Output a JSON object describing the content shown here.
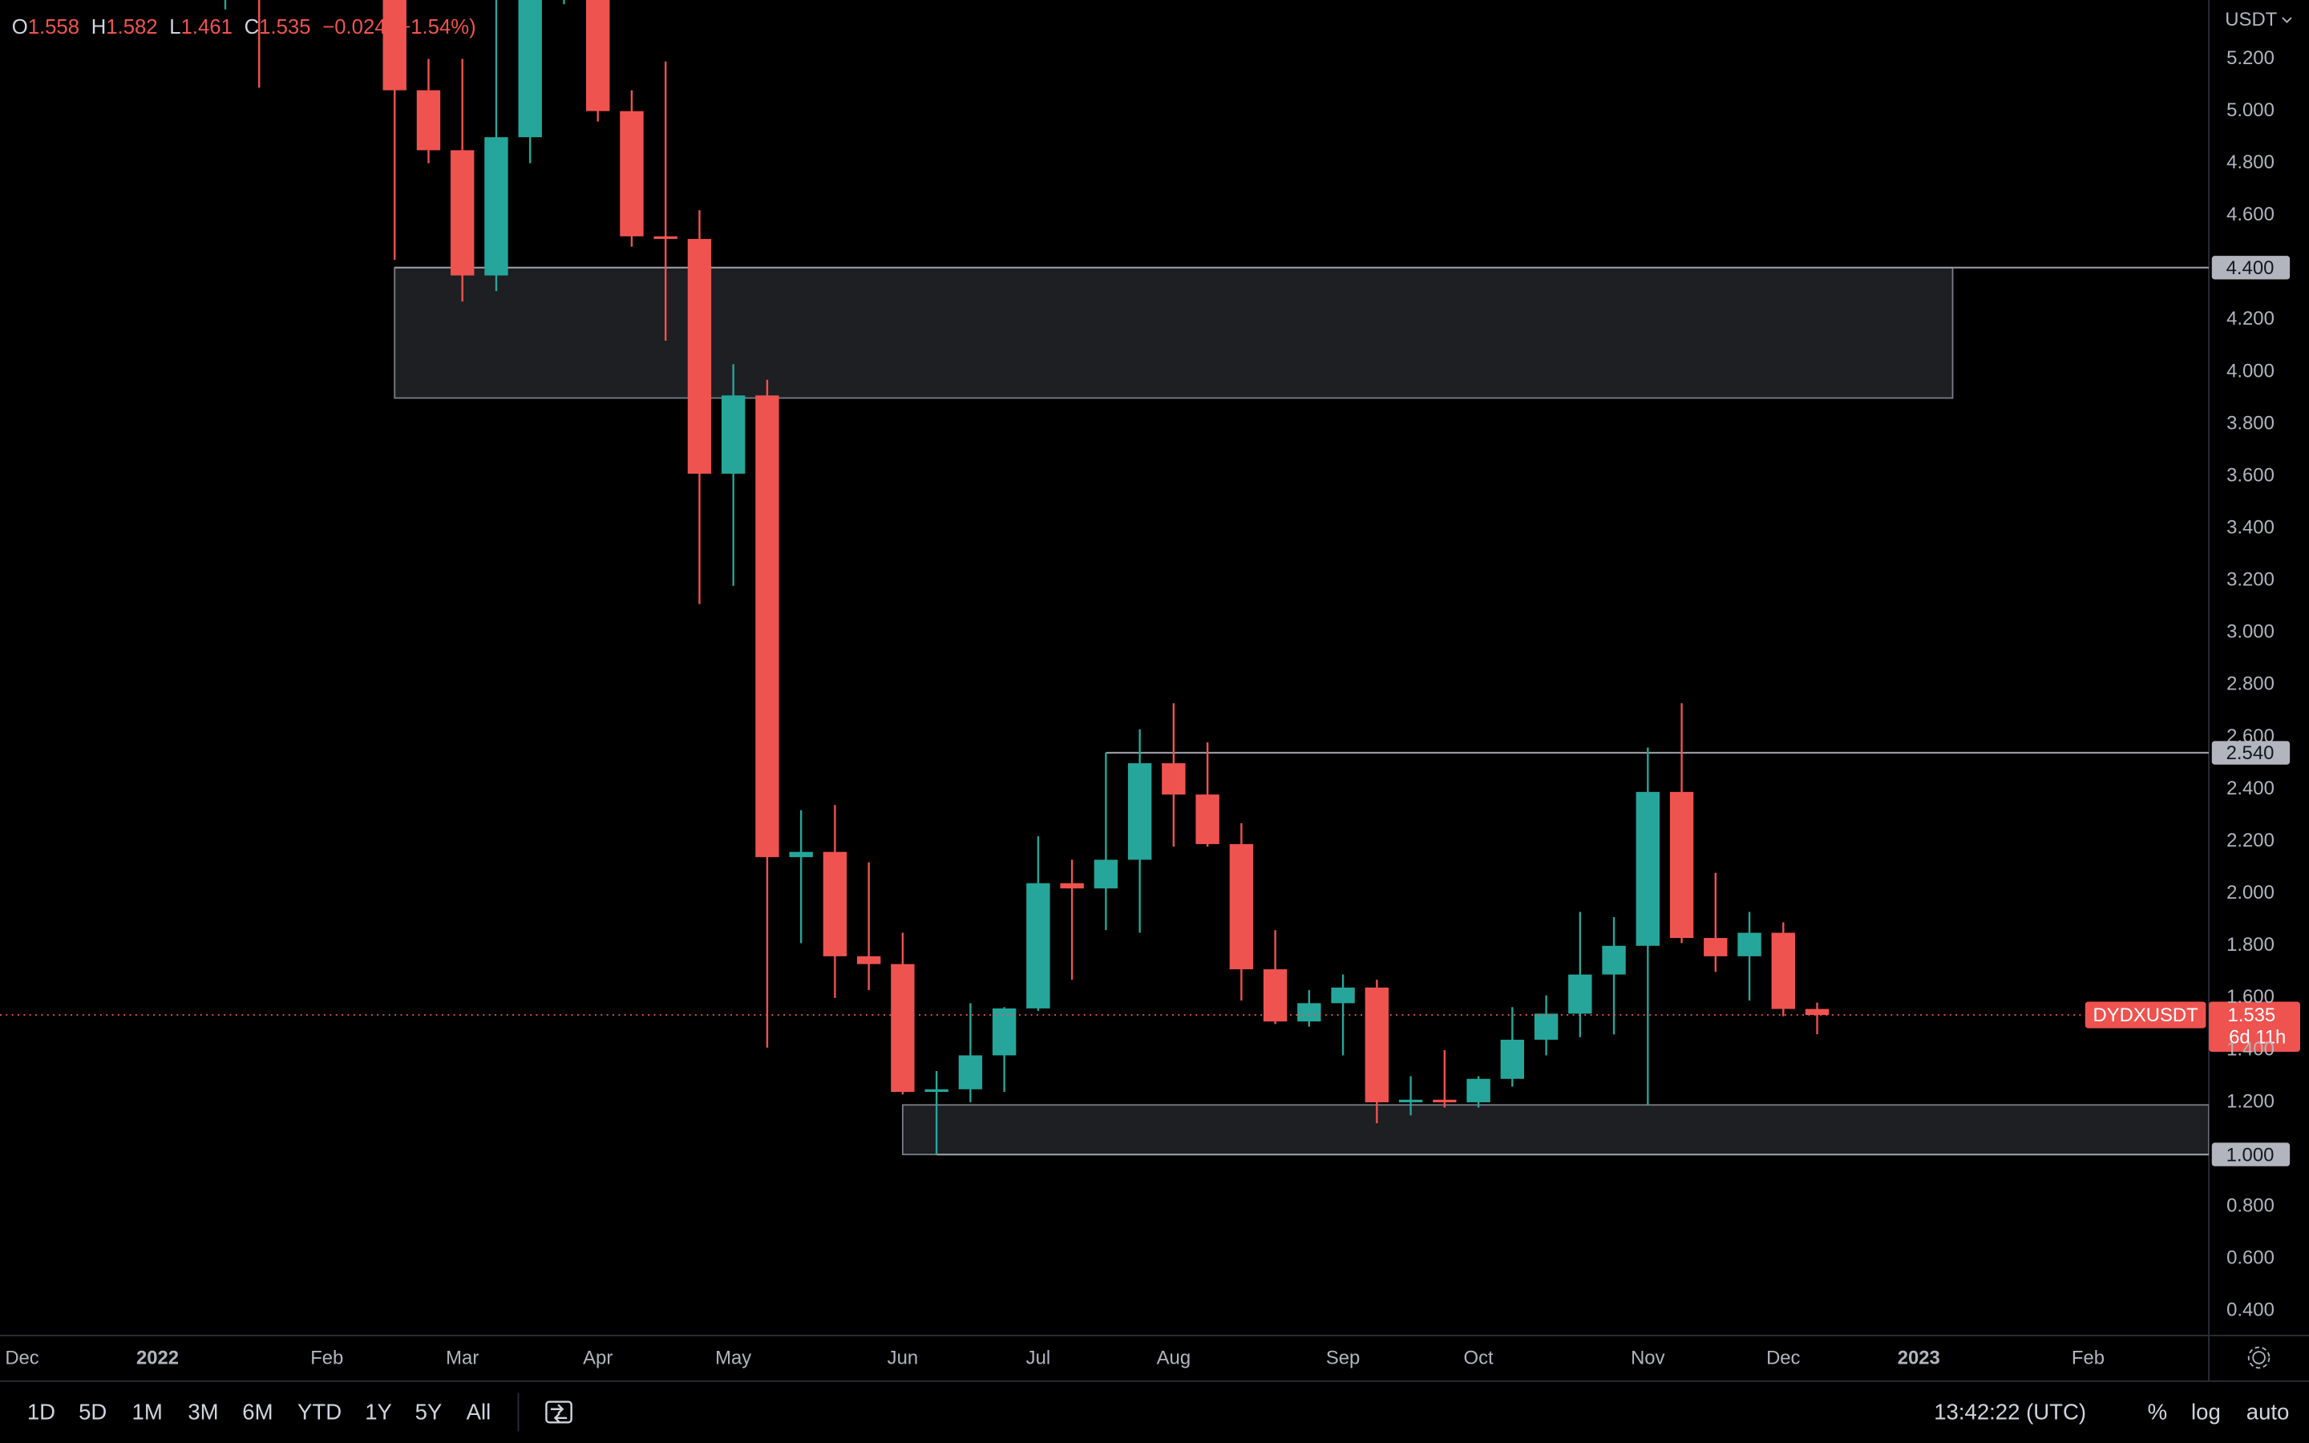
{
  "chart_data": {
    "type": "candlestick",
    "currency": "USDT",
    "header": {
      "fields": [
        {
          "label": "O",
          "value": "1.558"
        },
        {
          "label": "H",
          "value": "1.582"
        },
        {
          "label": "L",
          "value": "1.461"
        },
        {
          "label": "C",
          "value": "1.535"
        }
      ],
      "change": "−0.024 (−1.54%)"
    },
    "up_color": "#26a69a",
    "down_color": "#ef5350",
    "series": [
      {
        "name": "DYDXUSDT",
        "x": [
          6,
          7,
          11,
          12,
          13,
          14,
          15,
          16,
          17,
          18,
          19,
          20,
          21,
          22,
          23,
          24,
          25,
          26,
          27,
          28,
          29,
          30,
          31,
          32,
          33,
          34,
          35,
          36,
          37,
          38,
          39,
          40,
          41,
          42,
          43,
          44,
          45,
          46,
          47,
          48,
          49,
          50,
          51,
          52,
          53
        ],
        "open": [
          5.7,
          5.9,
          5.6,
          5.08,
          4.85,
          4.37,
          4.9,
          5.6,
          5.65,
          5.0,
          4.52,
          4.51,
          3.61,
          3.91,
          2.14,
          2.16,
          1.76,
          1.73,
          1.24,
          1.25,
          1.38,
          1.56,
          2.04,
          2.02,
          2.13,
          2.5,
          2.38,
          2.19,
          1.71,
          1.51,
          1.58,
          1.64,
          1.2,
          1.21,
          1.2,
          1.29,
          1.44,
          1.54,
          1.69,
          1.8,
          2.39,
          1.83,
          1.76,
          1.85,
          1.558
        ],
        "high": [
          5.9,
          6.1,
          5.8,
          5.2,
          5.2,
          5.45,
          5.7,
          5.8,
          5.8,
          5.08,
          5.19,
          4.62,
          4.03,
          3.97,
          2.32,
          2.34,
          2.12,
          1.85,
          1.32,
          1.58,
          1.565,
          2.22,
          2.13,
          2.54,
          2.63,
          2.73,
          2.58,
          2.27,
          1.86,
          1.63,
          1.69,
          1.67,
          1.3,
          1.4,
          1.3,
          1.565,
          1.61,
          1.93,
          1.91,
          2.56,
          2.73,
          2.08,
          1.93,
          1.89,
          1.582
        ],
        "low": [
          5.39,
          5.09,
          4.43,
          4.8,
          4.27,
          4.31,
          4.8,
          5.41,
          4.96,
          4.48,
          4.12,
          3.11,
          3.18,
          1.41,
          1.81,
          1.6,
          1.63,
          1.23,
          1.0,
          1.2,
          1.24,
          1.55,
          1.67,
          1.86,
          1.85,
          2.18,
          2.18,
          1.59,
          1.5,
          1.49,
          1.38,
          1.12,
          1.15,
          1.18,
          1.18,
          1.26,
          1.38,
          1.45,
          1.46,
          1.19,
          1.81,
          1.7,
          1.59,
          1.53,
          1.461
        ],
        "close": [
          5.8,
          5.7,
          5.08,
          4.85,
          4.37,
          4.9,
          5.5,
          5.7,
          5.0,
          4.52,
          4.51,
          3.61,
          3.91,
          2.14,
          2.16,
          1.76,
          1.73,
          1.24,
          1.25,
          1.38,
          1.56,
          2.04,
          2.02,
          2.13,
          2.5,
          2.38,
          2.19,
          1.71,
          1.51,
          1.58,
          1.64,
          1.2,
          1.21,
          1.2,
          1.29,
          1.44,
          1.54,
          1.69,
          1.8,
          2.39,
          1.83,
          1.76,
          1.85,
          1.558,
          1.535
        ]
      }
    ],
    "xlim": [
      -0.652,
      64.565
    ],
    "xticks": [
      {
        "value": 0,
        "label": "Dec"
      },
      {
        "value": 4,
        "label": "2022"
      },
      {
        "value": 9,
        "label": "Feb"
      },
      {
        "value": 13,
        "label": "Mar"
      },
      {
        "value": 17,
        "label": "Apr"
      },
      {
        "value": 21,
        "label": "May"
      },
      {
        "value": 26,
        "label": "Jun"
      },
      {
        "value": 30,
        "label": "Jul"
      },
      {
        "value": 34,
        "label": "Aug"
      },
      {
        "value": 39,
        "label": "Sep"
      },
      {
        "value": 43,
        "label": "Oct"
      },
      {
        "value": 48,
        "label": "Nov"
      },
      {
        "value": 52,
        "label": "Dec"
      },
      {
        "value": 56,
        "label": "2023"
      },
      {
        "value": 61,
        "label": "Feb"
      }
    ],
    "ylim": [
      0.306,
      5.426
    ],
    "yticks": [
      {
        "value": 0.4,
        "label": "0.400"
      },
      {
        "value": 0.6,
        "label": "0.600"
      },
      {
        "value": 0.8,
        "label": "0.800"
      },
      {
        "value": 1.2,
        "label": "1.200"
      },
      {
        "value": 1.4,
        "label": "1.400"
      },
      {
        "value": 1.6,
        "label": "1.600"
      },
      {
        "value": 1.8,
        "label": "1.800"
      },
      {
        "value": 2,
        "label": "2.000"
      },
      {
        "value": 2.2,
        "label": "2.200"
      },
      {
        "value": 2.4,
        "label": "2.400"
      },
      {
        "value": 2.6,
        "label": "2.600"
      },
      {
        "value": 2.8,
        "label": "2.800"
      },
      {
        "value": 3,
        "label": "3.000"
      },
      {
        "value": 3.2,
        "label": "3.200"
      },
      {
        "value": 3.4,
        "label": "3.400"
      },
      {
        "value": 3.6,
        "label": "3.600"
      },
      {
        "value": 3.8,
        "label": "3.800"
      },
      {
        "value": 4,
        "label": "4.000"
      },
      {
        "value": 4.2,
        "label": "4.200"
      },
      {
        "value": 4.6,
        "label": "4.600"
      },
      {
        "value": 4.8,
        "label": "4.800"
      },
      {
        "value": 5,
        "label": "5.000"
      },
      {
        "value": 5.2,
        "label": "5.200"
      }
    ],
    "zones": [
      {
        "top": 4.4,
        "bottom": 3.9,
        "start": 11,
        "end": 57
      },
      {
        "top": 1.19,
        "bottom": 1.0,
        "start": 26,
        "end": 64.565
      }
    ],
    "levels": [
      {
        "value": 4.4,
        "label": "4.400",
        "start": 11
      },
      {
        "value": 2.54,
        "label": "2.540",
        "start": 32
      },
      {
        "value": 1.0,
        "label": "1.000",
        "start": 27
      }
    ],
    "last_price": {
      "value": 1.535,
      "label": "1.535",
      "countdown": "6d 11h"
    }
  },
  "toolbar": {
    "ranges": [
      "1D",
      "5D",
      "1M",
      "3M",
      "6M",
      "YTD",
      "1Y",
      "5Y",
      "All"
    ],
    "clock": "13:42:22 (UTC)",
    "options": [
      "%",
      "log",
      "auto"
    ]
  }
}
